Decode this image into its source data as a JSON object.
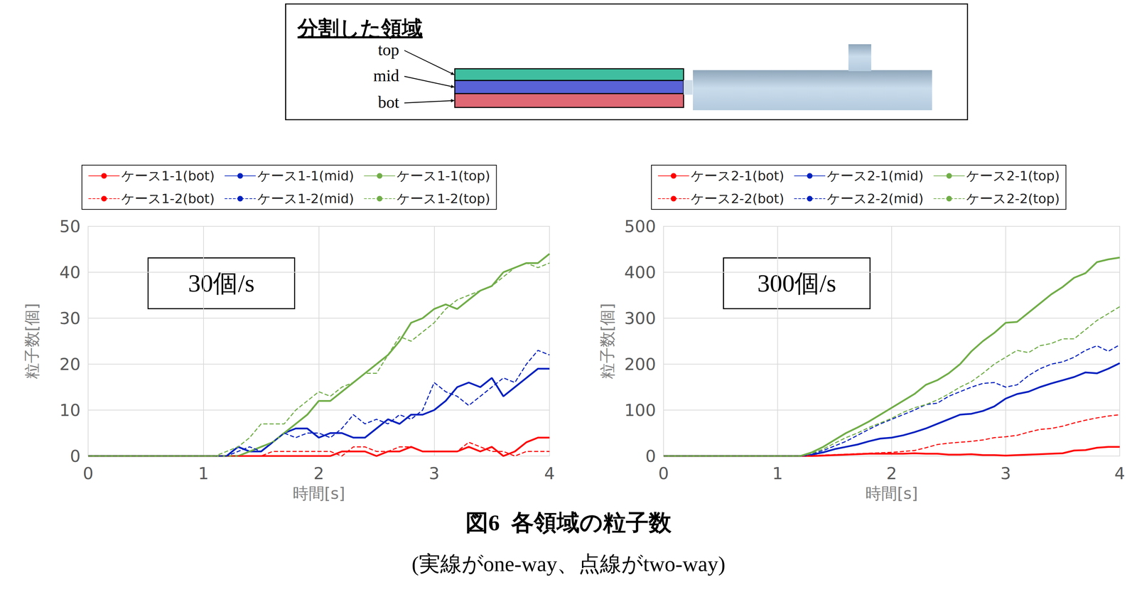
{
  "figure": {
    "diagram": {
      "title": "分割した領域",
      "labels": [
        "top",
        "mid",
        "bot"
      ]
    },
    "caption": [
      "図6  各領域の粒子数",
      "(実線がone-way、点線がtwo-way)"
    ]
  },
  "chart_data": [
    {
      "type": "line",
      "annotation": "30個/s",
      "xlabel": "時間[s]",
      "ylabel": "粒子数[個]",
      "xlim": [
        0,
        4
      ],
      "xticks": [
        0,
        1,
        2,
        3,
        4
      ],
      "ylim": [
        0,
        50
      ],
      "yticks": [
        0,
        10,
        20,
        30,
        40,
        50
      ],
      "grid": true,
      "legend": "top",
      "x": [
        0,
        0.1,
        0.2,
        0.3,
        0.4,
        0.5,
        0.6,
        0.7,
        0.8,
        0.9,
        1,
        1.1,
        1.2,
        1.3,
        1.4,
        1.5,
        1.6,
        1.7,
        1.8,
        1.9,
        2,
        2.1,
        2.2,
        2.3,
        2.4,
        2.5,
        2.6,
        2.7,
        2.8,
        2.9,
        3,
        3.1,
        3.2,
        3.3,
        3.4,
        3.5,
        3.6,
        3.7,
        3.8,
        3.9,
        4
      ],
      "series": [
        {
          "name": "ケース1-1(bot)",
          "color": "#ff0000",
          "line_style": "solid",
          "values": [
            0,
            0,
            0,
            0,
            0,
            0,
            0,
            0,
            0,
            0,
            0,
            0,
            0,
            0,
            0,
            0,
            0,
            0,
            0,
            0,
            0,
            0,
            1,
            1,
            1,
            0,
            1,
            1,
            2,
            1,
            1,
            1,
            1,
            2,
            1,
            2,
            0,
            1,
            3,
            4,
            4
          ]
        },
        {
          "name": "ケース1-1(mid)",
          "color": "#0020c0",
          "line_style": "solid",
          "values": [
            0,
            0,
            0,
            0,
            0,
            0,
            0,
            0,
            0,
            0,
            0,
            0,
            0,
            2,
            1,
            1,
            3,
            5,
            6,
            6,
            4,
            5,
            5,
            4,
            4,
            6,
            8,
            7,
            9,
            9,
            10,
            12,
            15,
            16,
            15,
            17,
            13,
            15,
            17,
            19,
            19
          ]
        },
        {
          "name": "ケース1-1(top)",
          "color": "#70ad47",
          "line_style": "solid",
          "values": [
            0,
            0,
            0,
            0,
            0,
            0,
            0,
            0,
            0,
            0,
            0,
            0,
            0,
            0,
            1,
            2,
            3,
            5,
            7,
            9,
            12,
            12,
            14,
            16,
            18,
            20,
            22,
            25,
            29,
            30,
            32,
            33,
            32,
            34,
            36,
            37,
            40,
            41,
            42,
            42,
            44
          ]
        },
        {
          "name": "ケース1-2(bot)",
          "color": "#ff0000",
          "line_style": "dashed",
          "values": [
            0,
            0,
            0,
            0,
            0,
            0,
            0,
            0,
            0,
            0,
            0,
            0,
            0,
            0,
            0,
            0,
            1,
            1,
            1,
            1,
            1,
            1,
            0,
            2,
            2,
            1,
            1,
            2,
            2,
            1,
            1,
            1,
            1,
            3,
            2,
            1,
            1,
            0,
            1,
            1,
            1
          ]
        },
        {
          "name": "ケース1-2(mid)",
          "color": "#0020c0",
          "line_style": "dashed",
          "values": [
            0,
            0,
            0,
            0,
            0,
            0,
            0,
            0,
            0,
            0,
            0,
            0,
            0,
            1,
            2,
            1,
            3,
            5,
            4,
            5,
            5,
            4,
            6,
            9,
            7,
            8,
            7,
            9,
            8,
            10,
            16,
            14,
            13,
            11,
            13,
            15,
            17,
            16,
            20,
            23,
            22
          ]
        },
        {
          "name": "ケース1-2(top)",
          "color": "#70ad47",
          "line_style": "dashed",
          "values": [
            0,
            0,
            0,
            0,
            0,
            0,
            0,
            0,
            0,
            0,
            0,
            0,
            1,
            2,
            4,
            7,
            7,
            7,
            10,
            12,
            14,
            13,
            15,
            16,
            18,
            18,
            22,
            26,
            25,
            27,
            29,
            32,
            34,
            35,
            36,
            37,
            39,
            41,
            42,
            41,
            42
          ]
        }
      ]
    },
    {
      "type": "line",
      "annotation": "300個/s",
      "xlabel": "時間[s]",
      "ylabel": "粒子数[個]",
      "xlim": [
        0,
        4
      ],
      "xticks": [
        0,
        1,
        2,
        3,
        4
      ],
      "ylim": [
        0,
        500
      ],
      "yticks": [
        0,
        100,
        200,
        300,
        400,
        500
      ],
      "grid": true,
      "legend": "top",
      "x": [
        0,
        0.1,
        0.2,
        0.3,
        0.4,
        0.5,
        0.6,
        0.7,
        0.8,
        0.9,
        1,
        1.1,
        1.2,
        1.3,
        1.4,
        1.5,
        1.6,
        1.7,
        1.8,
        1.9,
        2,
        2.1,
        2.2,
        2.3,
        2.4,
        2.5,
        2.6,
        2.7,
        2.8,
        2.9,
        3,
        3.1,
        3.2,
        3.3,
        3.4,
        3.5,
        3.6,
        3.7,
        3.8,
        3.9,
        4
      ],
      "series": [
        {
          "name": "ケース2-1(bot)",
          "color": "#ff0000",
          "line_style": "solid",
          "values": [
            0,
            0,
            0,
            0,
            0,
            0,
            0,
            0,
            0,
            0,
            0,
            0,
            0,
            0,
            1,
            2,
            3,
            4,
            5,
            5,
            5,
            5,
            6,
            5,
            5,
            3,
            3,
            4,
            2,
            2,
            1,
            2,
            3,
            4,
            5,
            6,
            12,
            13,
            18,
            20,
            20
          ]
        },
        {
          "name": "ケース2-1(mid)",
          "color": "#0020c0",
          "line_style": "solid",
          "values": [
            0,
            0,
            0,
            0,
            0,
            0,
            0,
            0,
            0,
            0,
            0,
            0,
            0,
            3,
            8,
            15,
            20,
            25,
            32,
            38,
            40,
            45,
            52,
            60,
            70,
            80,
            90,
            92,
            98,
            108,
            125,
            135,
            140,
            150,
            158,
            165,
            172,
            182,
            180,
            190,
            202
          ]
        },
        {
          "name": "ケース2-1(top)",
          "color": "#70ad47",
          "line_style": "solid",
          "values": [
            0,
            0,
            0,
            0,
            0,
            0,
            0,
            0,
            0,
            0,
            0,
            0,
            0,
            8,
            20,
            35,
            50,
            62,
            75,
            90,
            105,
            120,
            135,
            155,
            165,
            180,
            200,
            228,
            250,
            268,
            290,
            292,
            312,
            332,
            352,
            368,
            388,
            398,
            422,
            428,
            432
          ]
        },
        {
          "name": "ケース2-2(bot)",
          "color": "#ff0000",
          "line_style": "dashed",
          "values": [
            0,
            0,
            0,
            0,
            0,
            0,
            0,
            0,
            0,
            0,
            0,
            0,
            0,
            1,
            2,
            3,
            4,
            5,
            6,
            7,
            8,
            10,
            12,
            18,
            25,
            28,
            30,
            32,
            35,
            40,
            42,
            45,
            52,
            58,
            60,
            65,
            72,
            78,
            83,
            87,
            90
          ]
        },
        {
          "name": "ケース2-2(mid)",
          "color": "#0020c0",
          "line_style": "dashed",
          "values": [
            0,
            0,
            0,
            0,
            0,
            0,
            0,
            0,
            0,
            0,
            0,
            0,
            0,
            5,
            12,
            22,
            32,
            45,
            58,
            70,
            80,
            90,
            100,
            112,
            115,
            130,
            140,
            150,
            158,
            160,
            150,
            155,
            175,
            190,
            200,
            205,
            215,
            230,
            240,
            228,
            242
          ]
        },
        {
          "name": "ケース2-2(top)",
          "color": "#70ad47",
          "line_style": "dashed",
          "values": [
            0,
            0,
            0,
            0,
            0,
            0,
            0,
            0,
            0,
            0,
            0,
            0,
            0,
            6,
            15,
            28,
            40,
            50,
            62,
            72,
            82,
            95,
            105,
            112,
            122,
            135,
            150,
            162,
            180,
            200,
            215,
            230,
            225,
            240,
            245,
            255,
            255,
            275,
            295,
            310,
            325
          ]
        }
      ]
    }
  ]
}
